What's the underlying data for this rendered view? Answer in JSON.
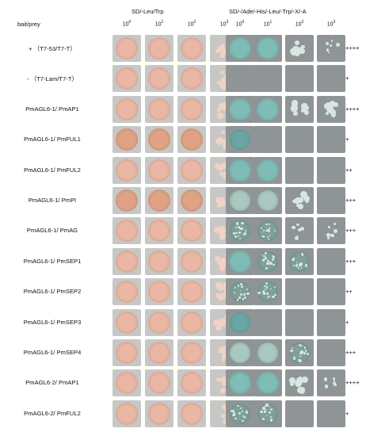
{
  "header": {
    "bait_prey": "bait/prey",
    "control_medium": "SD/-Leu/Trp",
    "selective_medium": "SD/-/Ade/-His/-Leu/-Trp/-X/-A",
    "dilutions": [
      {
        "base": "10",
        "exp": "0"
      },
      {
        "base": "10",
        "exp": "1"
      },
      {
        "base": "10",
        "exp": "2"
      },
      {
        "base": "10",
        "exp": "3"
      }
    ]
  },
  "colors": {
    "control_plate": "#c7c7c5",
    "selective_plate": "#8f9596",
    "yeast_pink": "#eab7a4",
    "yeast_deep_pink": "#e0a285",
    "yeast_blue": "#7fbcb6",
    "yeast_pale": "#d7e6e0"
  },
  "rows": [
    {
      "label": "+ （T7-53/T7-T）",
      "score": "++++",
      "control": [
        "full",
        "full",
        "full",
        "colonies"
      ],
      "selective": [
        "blue",
        "blue",
        "colonies",
        "few"
      ]
    },
    {
      "label": "- （T7-Lam/T7-T）",
      "score": "+",
      "control": [
        "full",
        "full",
        "full",
        "colonies"
      ],
      "selective": [
        "none",
        "none",
        "none",
        "none"
      ]
    },
    {
      "label": "PmAGL6-1/ PmAP1",
      "score": "++++",
      "control": [
        "full",
        "full",
        "full",
        "colonies"
      ],
      "selective": [
        "blue",
        "blue",
        "colonies",
        "colonies"
      ]
    },
    {
      "label": "PmAGL6-1/ PmFUL1",
      "score": "+",
      "control": [
        "deep",
        "deep",
        "deep",
        "colonies"
      ],
      "selective": [
        "bluefaint",
        "none",
        "none",
        "none"
      ]
    },
    {
      "label": "PmAGL6-1/ PmFUL2",
      "score": "++",
      "control": [
        "full",
        "full",
        "full",
        "colonies"
      ],
      "selective": [
        "blue",
        "blue",
        "none",
        "none"
      ]
    },
    {
      "label": "PmAGL6-1/  PmPI",
      "score": "+++",
      "control": [
        "deep",
        "deep",
        "deep",
        "colonies"
      ],
      "selective": [
        "pale",
        "pale",
        "colonies",
        "none"
      ]
    },
    {
      "label": "PmAGL6-1/ PmAG",
      "score": "+++",
      "control": [
        "full",
        "full",
        "full",
        "colonies"
      ],
      "selective": [
        "speckled",
        "speckled",
        "few",
        "few"
      ]
    },
    {
      "label": "PmAGL6-1/ PmSEP1",
      "score": "+++",
      "control": [
        "full",
        "full",
        "full",
        "colonies"
      ],
      "selective": [
        "blue",
        "speckled",
        "speckled",
        "none"
      ]
    },
    {
      "label": "PmAGL6-1/ PmSEP2",
      "score": "++",
      "control": [
        "full",
        "full",
        "full",
        "colonies"
      ],
      "selective": [
        "speckled",
        "speckled",
        "none",
        "none"
      ]
    },
    {
      "label": "PmAGL6-1/ PmSEP3",
      "score": "+",
      "control": [
        "full",
        "full",
        "full",
        "colonies"
      ],
      "selective": [
        "bluefaint",
        "none",
        "none",
        "none"
      ]
    },
    {
      "label": "PmAGL6-1/ PmSEP4",
      "score": "+++",
      "control": [
        "full",
        "full",
        "full",
        "colonies"
      ],
      "selective": [
        "pale",
        "pale",
        "speckled",
        "none"
      ]
    },
    {
      "label": "PmAGL6-2/ PmAP1",
      "score": "++++",
      "control": [
        "full",
        "full",
        "full",
        "colonies"
      ],
      "selective": [
        "blue",
        "blue",
        "colonies",
        "few"
      ]
    },
    {
      "label": "PmAGL6-2/ PmFUL2",
      "score": "+",
      "control": [
        "full",
        "full",
        "full",
        "colonies"
      ],
      "selective": [
        "speckled",
        "speckled",
        "none",
        "none"
      ]
    }
  ]
}
